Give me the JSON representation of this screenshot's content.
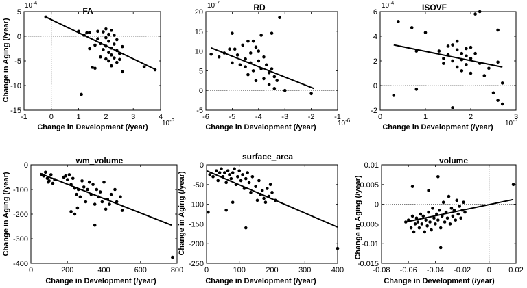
{
  "figure": {
    "common": {
      "xlabel": "Change in Development (/year)",
      "ylabel": "Change in Aging (/year)"
    }
  },
  "chart_data": [
    {
      "type": "scatter",
      "title": "FA",
      "xlabel": "Change in Development (/year)",
      "ylabel": "Change in Aging (/year)",
      "x_multiplier": "10^-3",
      "y_multiplier": "10^-4",
      "xlim": [
        -1,
        4
      ],
      "ylim": [
        -15,
        5
      ],
      "xticks": [
        -1,
        0,
        1,
        2,
        3,
        4
      ],
      "yticks": [
        -15,
        -10,
        -5,
        0,
        5
      ],
      "ref_lines": {
        "x": 0,
        "y": 0
      },
      "fit_line": [
        [
          -0.2,
          3.9
        ],
        [
          3.8,
          -6.7
        ]
      ],
      "points": [
        [
          -0.2,
          3.9
        ],
        [
          1.0,
          1.0
        ],
        [
          1.1,
          -11.8
        ],
        [
          1.2,
          0.2
        ],
        [
          1.3,
          0.7
        ],
        [
          1.4,
          0.8
        ],
        [
          1.4,
          -2.5
        ],
        [
          1.5,
          -6.3
        ],
        [
          1.6,
          -6.5
        ],
        [
          1.6,
          -1.8
        ],
        [
          1.7,
          1.0
        ],
        [
          1.7,
          -0.5
        ],
        [
          1.8,
          -1.5
        ],
        [
          1.8,
          -4.2
        ],
        [
          1.9,
          0.9
        ],
        [
          1.9,
          -2.7
        ],
        [
          2.0,
          1.5
        ],
        [
          2.0,
          -0.3
        ],
        [
          2.0,
          -4.6
        ],
        [
          2.0,
          -2.0
        ],
        [
          2.1,
          0.4
        ],
        [
          2.1,
          -1.0
        ],
        [
          2.1,
          -3.3
        ],
        [
          2.1,
          -5.0
        ],
        [
          2.2,
          1.2
        ],
        [
          2.2,
          -2.4
        ],
        [
          2.2,
          -3.8
        ],
        [
          2.2,
          -6.0
        ],
        [
          2.3,
          0.2
        ],
        [
          2.3,
          -1.6
        ],
        [
          2.3,
          -4.4
        ],
        [
          2.4,
          -0.7
        ],
        [
          2.4,
          -2.9
        ],
        [
          2.4,
          -5.3
        ],
        [
          2.5,
          -3.5
        ],
        [
          2.5,
          -4.7
        ],
        [
          2.6,
          -2.1
        ],
        [
          2.6,
          -7.2
        ],
        [
          3.4,
          -6.2
        ],
        [
          3.8,
          -6.8
        ]
      ]
    },
    {
      "type": "scatter",
      "title": "RD",
      "xlabel": "Change in Development (/year)",
      "ylabel": "",
      "x_multiplier": "10^-6",
      "y_multiplier": "10^-7",
      "xlim": [
        -6,
        -1
      ],
      "ylim": [
        -5,
        20
      ],
      "xticks": [
        -6,
        -5,
        -4,
        -3,
        -2,
        -1
      ],
      "yticks": [
        -5,
        0,
        5,
        10,
        15,
        20
      ],
      "ref_lines": {
        "y": 0
      },
      "fit_line": [
        [
          -5.8,
          10.8
        ],
        [
          -1.9,
          0.5
        ]
      ],
      "points": [
        [
          -5.8,
          9.2
        ],
        [
          -5.5,
          8.5
        ],
        [
          -5.3,
          9.5
        ],
        [
          -5.1,
          10.5
        ],
        [
          -5.0,
          14.5
        ],
        [
          -5.0,
          7.0
        ],
        [
          -4.9,
          10.5
        ],
        [
          -4.8,
          9.0
        ],
        [
          -4.7,
          6.5
        ],
        [
          -4.6,
          11.5
        ],
        [
          -4.5,
          8.0
        ],
        [
          -4.5,
          6.0
        ],
        [
          -4.4,
          12.5
        ],
        [
          -4.4,
          4.0
        ],
        [
          -4.3,
          9.5
        ],
        [
          -4.3,
          7.0
        ],
        [
          -4.2,
          12.5
        ],
        [
          -4.2,
          5.0
        ],
        [
          -4.1,
          11.0
        ],
        [
          -4.1,
          2.5
        ],
        [
          -4.0,
          10.0
        ],
        [
          -4.0,
          7.5
        ],
        [
          -3.9,
          14.0
        ],
        [
          -3.9,
          5.5
        ],
        [
          -3.8,
          8.5
        ],
        [
          -3.8,
          3.0
        ],
        [
          -3.7,
          6.5
        ],
        [
          -3.6,
          4.5
        ],
        [
          -3.6,
          1.5
        ],
        [
          -3.5,
          14.5
        ],
        [
          -3.5,
          5.5
        ],
        [
          -3.4,
          3.5
        ],
        [
          -3.4,
          0.5
        ],
        [
          -3.3,
          2.5
        ],
        [
          -3.2,
          18.5
        ],
        [
          -3.0,
          0.0
        ],
        [
          -2.0,
          -0.8
        ]
      ]
    },
    {
      "type": "scatter",
      "title": "ISOVF",
      "xlabel": "Change in Development (/year)",
      "ylabel": "",
      "x_multiplier": "10^-3",
      "y_multiplier": "10^-4",
      "xlim": [
        0,
        3
      ],
      "ylim": [
        -2,
        6
      ],
      "xticks": [
        0,
        1,
        2,
        3
      ],
      "yticks": [
        -2,
        0,
        2,
        4,
        6
      ],
      "ref_lines": {
        "y": 0
      },
      "fit_line": [
        [
          0.3,
          3.3
        ],
        [
          2.7,
          1.5
        ]
      ],
      "points": [
        [
          0.3,
          -0.8
        ],
        [
          0.4,
          5.2
        ],
        [
          0.7,
          4.7
        ],
        [
          0.8,
          -0.3
        ],
        [
          0.8,
          2.8
        ],
        [
          1.0,
          4.3
        ],
        [
          1.3,
          2.8
        ],
        [
          1.4,
          2.2
        ],
        [
          1.4,
          1.8
        ],
        [
          1.5,
          3.2
        ],
        [
          1.5,
          2.5
        ],
        [
          1.6,
          3.3
        ],
        [
          1.6,
          2.0
        ],
        [
          1.6,
          -1.8
        ],
        [
          1.7,
          2.9
        ],
        [
          1.7,
          1.5
        ],
        [
          1.7,
          3.6
        ],
        [
          1.8,
          2.6
        ],
        [
          1.8,
          2.1
        ],
        [
          1.8,
          1.2
        ],
        [
          1.9,
          3.0
        ],
        [
          1.9,
          2.4
        ],
        [
          1.9,
          1.7
        ],
        [
          2.0,
          3.1
        ],
        [
          2.0,
          2.2
        ],
        [
          2.0,
          1.0
        ],
        [
          2.1,
          5.8
        ],
        [
          2.1,
          2.6
        ],
        [
          2.2,
          6.0
        ],
        [
          2.2,
          1.8
        ],
        [
          2.3,
          0.8
        ],
        [
          2.4,
          1.4
        ],
        [
          2.5,
          -0.6
        ],
        [
          2.6,
          4.5
        ],
        [
          2.6,
          1.9
        ],
        [
          2.6,
          -1.2
        ],
        [
          2.7,
          -1.5
        ],
        [
          2.7,
          0.2
        ]
      ]
    },
    {
      "type": "scatter",
      "title": "wm_volume",
      "xlabel": "Change in Development (/year)",
      "ylabel": "Change in Aging (/year)",
      "xlim": [
        0,
        800
      ],
      "ylim": [
        -400,
        0
      ],
      "xticks": [
        0,
        200,
        400,
        600,
        800
      ],
      "yticks": [
        -400,
        -300,
        -200,
        -100,
        0
      ],
      "fit_line": [
        [
          50,
          -35
        ],
        [
          770,
          -245
        ]
      ],
      "points": [
        [
          60,
          -40
        ],
        [
          70,
          -45
        ],
        [
          80,
          -30
        ],
        [
          90,
          -55
        ],
        [
          95,
          -70
        ],
        [
          100,
          -65
        ],
        [
          110,
          -40
        ],
        [
          120,
          -75
        ],
        [
          130,
          -60
        ],
        [
          180,
          -50
        ],
        [
          190,
          -45
        ],
        [
          200,
          -60
        ],
        [
          210,
          -40
        ],
        [
          220,
          -80
        ],
        [
          230,
          -55
        ],
        [
          240,
          -95
        ],
        [
          250,
          -120
        ],
        [
          255,
          -175
        ],
        [
          260,
          -100
        ],
        [
          270,
          -130
        ],
        [
          280,
          -65
        ],
        [
          290,
          -90
        ],
        [
          300,
          -150
        ],
        [
          310,
          -100
        ],
        [
          320,
          -70
        ],
        [
          330,
          -120
        ],
        [
          340,
          -80
        ],
        [
          350,
          -160
        ],
        [
          350,
          -245
        ],
        [
          360,
          -100
        ],
        [
          370,
          -130
        ],
        [
          380,
          -110
        ],
        [
          390,
          -150
        ],
        [
          400,
          -70
        ],
        [
          410,
          -180
        ],
        [
          420,
          -140
        ],
        [
          430,
          -160
        ],
        [
          440,
          -120
        ],
        [
          460,
          -100
        ],
        [
          470,
          -150
        ],
        [
          490,
          -130
        ],
        [
          500,
          -185
        ],
        [
          220,
          -190
        ],
        [
          240,
          -200
        ],
        [
          775,
          -375
        ]
      ]
    },
    {
      "type": "scatter",
      "title": "surface_area",
      "xlabel": "Change in Development (/year)",
      "ylabel": "Change in Aging (/year)",
      "xlim": [
        0,
        400
      ],
      "ylim": [
        -250,
        0
      ],
      "xticks": [
        0,
        100,
        200,
        300,
        400
      ],
      "yticks": [
        -250,
        -200,
        -150,
        -100,
        -50,
        0
      ],
      "fit_line": [
        [
          0,
          -15
        ],
        [
          400,
          -158
        ]
      ],
      "points": [
        [
          5,
          -120
        ],
        [
          10,
          -25
        ],
        [
          20,
          -30
        ],
        [
          30,
          -15
        ],
        [
          35,
          -40
        ],
        [
          40,
          -20
        ],
        [
          45,
          -10
        ],
        [
          50,
          -30
        ],
        [
          55,
          -20
        ],
        [
          60,
          -45
        ],
        [
          65,
          -15
        ],
        [
          70,
          -25
        ],
        [
          75,
          -35
        ],
        [
          80,
          -20
        ],
        [
          85,
          -10
        ],
        [
          90,
          -50
        ],
        [
          95,
          -30
        ],
        [
          100,
          -15
        ],
        [
          105,
          -40
        ],
        [
          110,
          -25
        ],
        [
          115,
          -60
        ],
        [
          120,
          -35
        ],
        [
          125,
          -20
        ],
        [
          130,
          -45
        ],
        [
          135,
          -70
        ],
        [
          140,
          -30
        ],
        [
          150,
          -55
        ],
        [
          155,
          -90
        ],
        [
          160,
          -40
        ],
        [
          165,
          -75
        ],
        [
          170,
          -65
        ],
        [
          175,
          -85
        ],
        [
          180,
          -95
        ],
        [
          185,
          -60
        ],
        [
          190,
          -80
        ],
        [
          195,
          -50
        ],
        [
          200,
          -70
        ],
        [
          210,
          -90
        ],
        [
          60,
          -115
        ],
        [
          80,
          -95
        ],
        [
          120,
          -160
        ],
        [
          400,
          -212
        ]
      ]
    },
    {
      "type": "scatter",
      "title": "volume",
      "xlabel": "Change in Development (/year)",
      "ylabel": "Change in Aging (/year)",
      "xlim": [
        -0.08,
        0.02
      ],
      "ylim": [
        -0.015,
        0.01
      ],
      "xticks": [
        -0.08,
        -0.06,
        -0.04,
        -0.02,
        0,
        0.02
      ],
      "yticks": [
        -0.015,
        -0.01,
        -0.005,
        0,
        0.005,
        0.01
      ],
      "ref_lines": {
        "x": 0,
        "y": 0
      },
      "fit_line": [
        [
          -0.062,
          -0.0045
        ],
        [
          0.018,
          0.0012
        ]
      ],
      "points": [
        [
          -0.062,
          -0.0045
        ],
        [
          -0.06,
          -0.004
        ],
        [
          -0.058,
          -0.006
        ],
        [
          -0.057,
          -0.003
        ],
        [
          -0.056,
          -0.007
        ],
        [
          -0.055,
          -0.005
        ],
        [
          -0.054,
          -0.0035
        ],
        [
          -0.053,
          -0.0045
        ],
        [
          -0.052,
          -0.006
        ],
        [
          -0.051,
          -0.0025
        ],
        [
          -0.05,
          -0.005
        ],
        [
          -0.049,
          -0.003
        ],
        [
          -0.048,
          -0.007
        ],
        [
          -0.047,
          -0.004
        ],
        [
          -0.046,
          -0.0055
        ],
        [
          -0.045,
          -0.002
        ],
        [
          -0.044,
          -0.0045
        ],
        [
          -0.043,
          -0.0065
        ],
        [
          -0.042,
          -0.001
        ],
        [
          -0.041,
          -0.0035
        ],
        [
          -0.04,
          -0.005
        ],
        [
          -0.039,
          -0.0025
        ],
        [
          -0.038,
          -0.004
        ],
        [
          -0.038,
          0.007
        ],
        [
          -0.037,
          -0.0015
        ],
        [
          -0.036,
          -0.006
        ],
        [
          -0.036,
          -0.011
        ],
        [
          -0.035,
          -0.003
        ],
        [
          -0.034,
          0.0005
        ],
        [
          -0.033,
          -0.0045
        ],
        [
          -0.032,
          -0.002
        ],
        [
          -0.031,
          -0.0035
        ],
        [
          -0.03,
          0.002
        ],
        [
          -0.029,
          -0.005
        ],
        [
          -0.028,
          -0.001
        ],
        [
          -0.027,
          -0.003
        ],
        [
          -0.026,
          -0.0015
        ],
        [
          -0.025,
          -0.004
        ],
        [
          -0.024,
          0.001
        ],
        [
          -0.023,
          -0.0025
        ],
        [
          -0.022,
          -0.0005
        ],
        [
          -0.021,
          -0.0035
        ],
        [
          -0.02,
          -0.0015
        ],
        [
          -0.019,
          0.0005
        ],
        [
          -0.018,
          -0.002
        ],
        [
          -0.057,
          0.0045
        ],
        [
          -0.045,
          0.0035
        ],
        [
          0.018,
          0.005
        ]
      ]
    }
  ]
}
